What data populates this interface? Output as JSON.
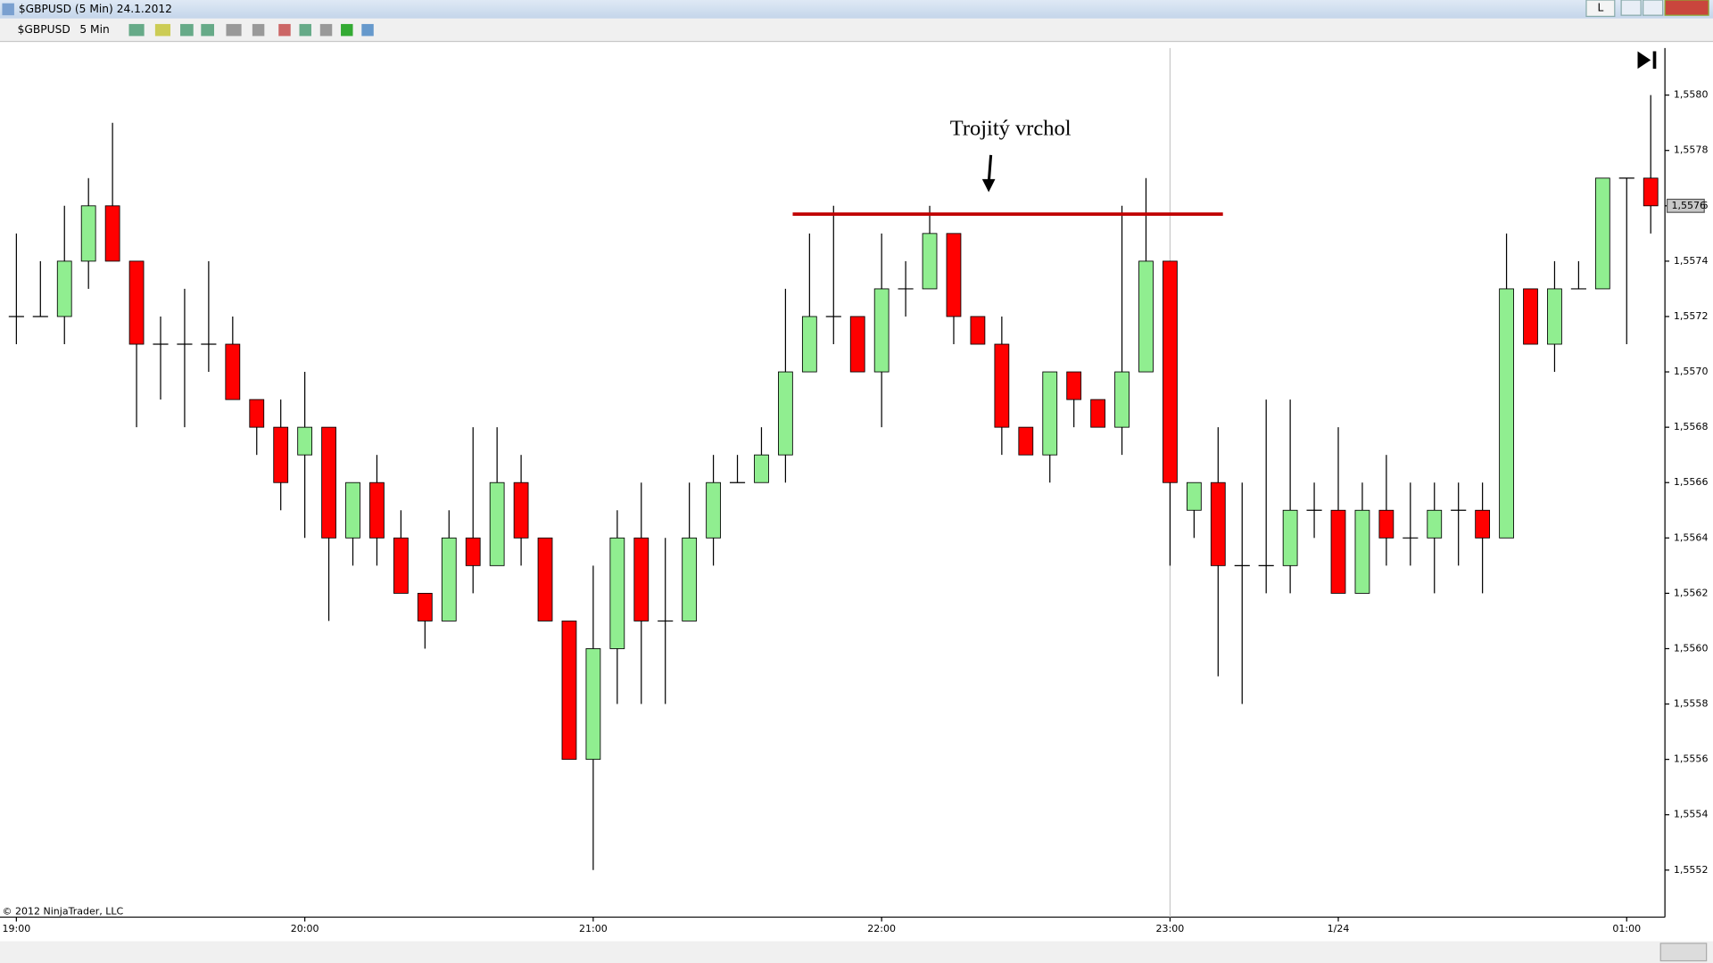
{
  "window": {
    "title": "$GBPUSD (5 Min)  24.1.2012",
    "button": "L"
  },
  "toolbar": {
    "instrument": "$GBPUSD",
    "interval": "5 Min"
  },
  "copyright": "© 2012 NinjaTrader, LLC",
  "chart_data": {
    "type": "candlestick",
    "annotation": "Trojitý vrchol",
    "categories": [
      "19:00",
      null,
      null,
      null,
      null,
      null,
      null,
      null,
      null,
      null,
      null,
      null,
      "20:00",
      null,
      null,
      null,
      null,
      null,
      null,
      null,
      null,
      null,
      null,
      null,
      "21:00",
      null,
      null,
      null,
      null,
      null,
      null,
      null,
      null,
      null,
      null,
      null,
      "22:00",
      null,
      null,
      null,
      null,
      null,
      null,
      null,
      null,
      null,
      null,
      null,
      "23:00",
      null,
      null,
      null,
      null,
      null,
      null,
      "1/24",
      null,
      null,
      null,
      null,
      null,
      null,
      null,
      null,
      null,
      null,
      null,
      "01:00",
      null
    ],
    "open": [
      1.5572,
      1.5572,
      1.5572,
      1.5574,
      1.5576,
      1.5574,
      1.5571,
      1.5571,
      1.5571,
      1.5571,
      1.5569,
      1.5568,
      1.5567,
      1.5568,
      1.5564,
      1.5566,
      1.5564,
      1.5562,
      1.5561,
      1.5564,
      1.5563,
      1.5566,
      1.5564,
      1.5561,
      1.5556,
      1.556,
      1.5564,
      1.5561,
      1.5561,
      1.5564,
      1.5566,
      1.5566,
      1.5567,
      1.557,
      1.5572,
      1.5572,
      1.557,
      1.5573,
      1.5573,
      1.5575,
      1.5572,
      1.5571,
      1.5568,
      1.5567,
      1.557,
      1.5569,
      1.5568,
      1.557,
      1.5574,
      1.5565,
      1.5566,
      1.5563,
      1.5563,
      1.5563,
      1.5565,
      1.5565,
      1.5562,
      1.5565,
      1.5564,
      1.5564,
      1.5565,
      1.5565,
      1.5564,
      1.5573,
      1.5571,
      1.5573,
      1.5573,
      1.5577,
      1.5577
    ],
    "high": [
      1.5575,
      1.5574,
      1.5576,
      1.5577,
      1.5579,
      1.5574,
      1.5572,
      1.5573,
      1.5574,
      1.5572,
      1.5569,
      1.5569,
      1.557,
      1.5568,
      1.5566,
      1.5567,
      1.5565,
      1.5562,
      1.5565,
      1.5568,
      1.5568,
      1.5567,
      1.5564,
      1.5561,
      1.5563,
      1.5565,
      1.5566,
      1.5564,
      1.5566,
      1.5567,
      1.5567,
      1.5568,
      1.5573,
      1.5575,
      1.5576,
      1.5572,
      1.5575,
      1.5574,
      1.5576,
      1.5575,
      1.5572,
      1.5572,
      1.5568,
      1.557,
      1.557,
      1.5569,
      1.5576,
      1.5577,
      1.5574,
      1.5566,
      1.5568,
      1.5566,
      1.5569,
      1.5569,
      1.5566,
      1.5568,
      1.5566,
      1.5567,
      1.5566,
      1.5566,
      1.5566,
      1.5566,
      1.5575,
      1.5573,
      1.5574,
      1.5574,
      1.5577,
      1.5577,
      1.558
    ],
    "low": [
      1.5571,
      1.5572,
      1.5571,
      1.5573,
      1.5574,
      1.5568,
      1.5569,
      1.5568,
      1.557,
      1.5569,
      1.5567,
      1.5565,
      1.5564,
      1.5561,
      1.5563,
      1.5563,
      1.5562,
      1.556,
      1.5561,
      1.5562,
      1.5563,
      1.5563,
      1.5561,
      1.5556,
      1.5552,
      1.5558,
      1.5558,
      1.5558,
      1.5561,
      1.5563,
      1.5566,
      1.5566,
      1.5566,
      1.557,
      1.5571,
      1.557,
      1.5568,
      1.5572,
      1.5573,
      1.5571,
      1.5571,
      1.5567,
      1.5567,
      1.5566,
      1.5568,
      1.5568,
      1.5567,
      1.557,
      1.5563,
      1.5564,
      1.5559,
      1.5558,
      1.5562,
      1.5562,
      1.5564,
      1.5562,
      1.5562,
      1.5563,
      1.5563,
      1.5562,
      1.5563,
      1.5562,
      1.5564,
      1.5571,
      1.557,
      1.5573,
      1.5573,
      1.5571,
      1.5575
    ],
    "close": [
      1.5572,
      1.5572,
      1.5574,
      1.5576,
      1.5574,
      1.5571,
      1.5571,
      1.5571,
      1.5571,
      1.5569,
      1.5568,
      1.5566,
      1.5568,
      1.5564,
      1.5566,
      1.5564,
      1.5562,
      1.5561,
      1.5564,
      1.5563,
      1.5566,
      1.5564,
      1.5561,
      1.5556,
      1.556,
      1.5564,
      1.5561,
      1.5561,
      1.5564,
      1.5566,
      1.5566,
      1.5567,
      1.557,
      1.5572,
      1.5572,
      1.557,
      1.5573,
      1.5573,
      1.5575,
      1.5572,
      1.5571,
      1.5568,
      1.5567,
      1.557,
      1.5569,
      1.5568,
      1.557,
      1.5574,
      1.5566,
      1.5566,
      1.5563,
      1.5563,
      1.5563,
      1.5565,
      1.5565,
      1.5562,
      1.5565,
      1.5564,
      1.5564,
      1.5565,
      1.5565,
      1.5564,
      1.5573,
      1.5571,
      1.5573,
      1.5573,
      1.5577,
      1.5577,
      1.5576
    ],
    "up_color": "#90ee90",
    "down_color": "#ff0000",
    "ylim": [
      1.55503,
      1.55817
    ],
    "yticks": [
      {
        "value": 1.5552,
        "label": "1,5552"
      },
      {
        "value": 1.5554,
        "label": "1,5554"
      },
      {
        "value": 1.5556,
        "label": "1,5556"
      },
      {
        "value": 1.5558,
        "label": "1,5558"
      },
      {
        "value": 1.556,
        "label": "1,5560"
      },
      {
        "value": 1.5562,
        "label": "1,5562"
      },
      {
        "value": 1.5564,
        "label": "1,5564"
      },
      {
        "value": 1.5566,
        "label": "1,5566"
      },
      {
        "value": 1.5568,
        "label": "1,5568"
      },
      {
        "value": 1.557,
        "label": "1,5570"
      },
      {
        "value": 1.5572,
        "label": "1,5572"
      },
      {
        "value": 1.5574,
        "label": "1,5574"
      },
      {
        "value": 1.5576,
        "label": "1,5576"
      },
      {
        "value": 1.5578,
        "label": "1,5578"
      },
      {
        "value": 1.558,
        "label": "1,5580"
      }
    ],
    "last_price": {
      "value": 1.5576,
      "label": "1,5576"
    },
    "resistance_line": {
      "value": 1.55757,
      "start": 32.3,
      "end": 50.2,
      "color": "#c00000"
    },
    "session_break": 48
  }
}
